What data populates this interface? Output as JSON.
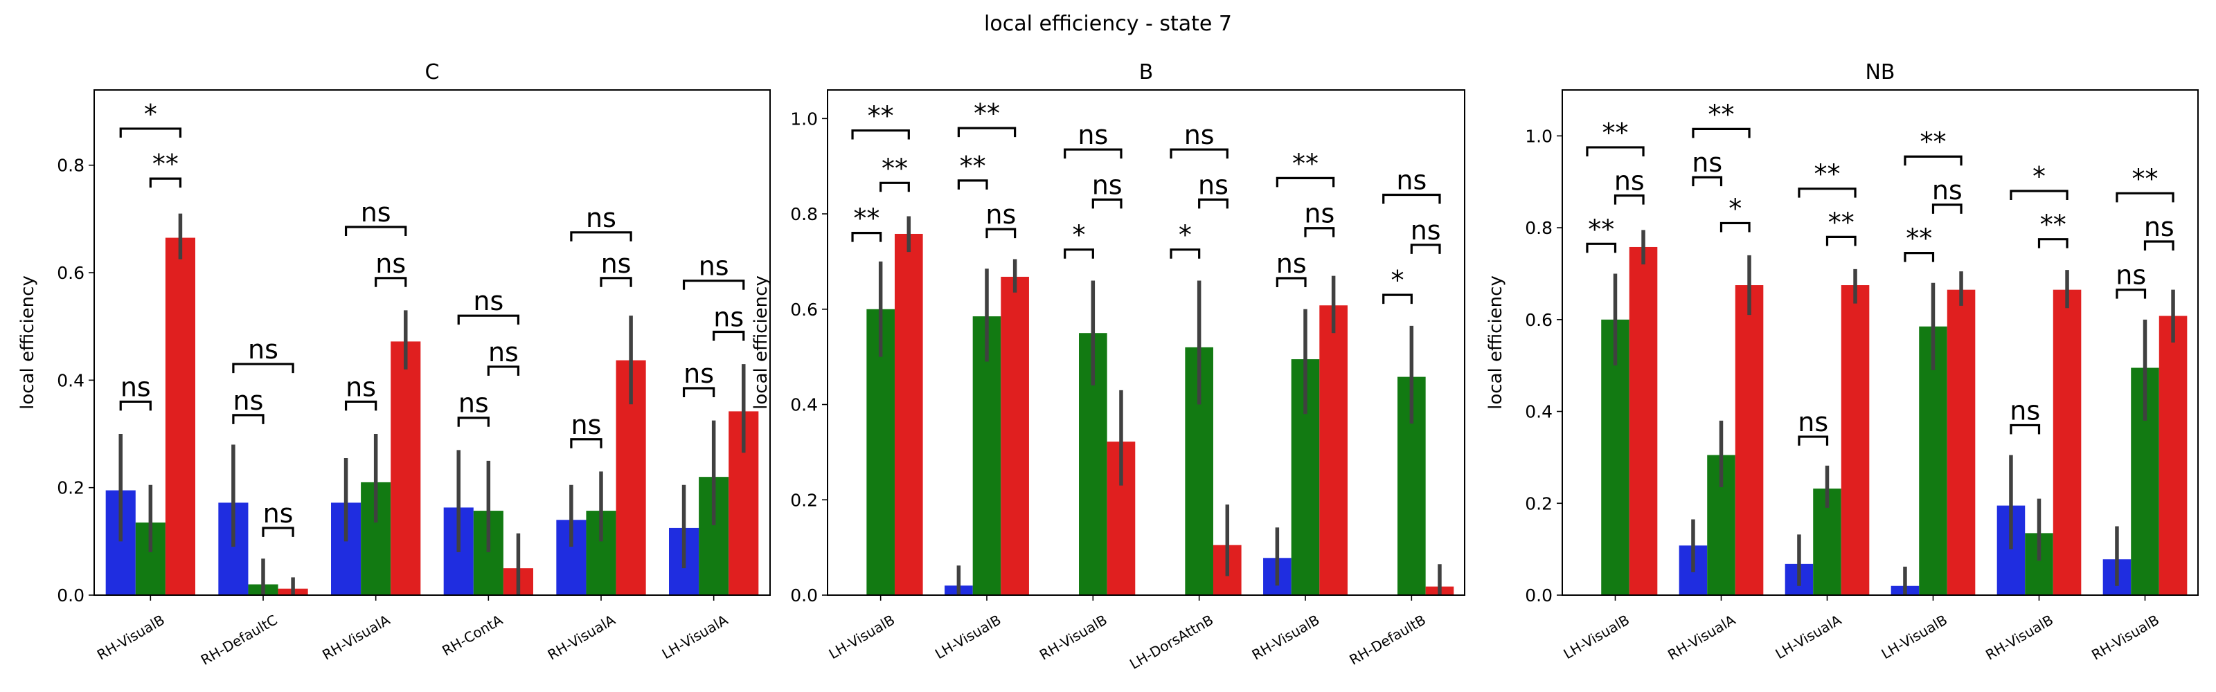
{
  "figure": {
    "suptitle": "local efficiency - state 7"
  },
  "colors": {
    "blue": "#1f2de0",
    "green": "#127a12",
    "red": "#e01f1f",
    "err": "#404040"
  },
  "chart_data": [
    {
      "type": "bar",
      "title": "C",
      "ylabel": "local efficiency",
      "xlabel": "",
      "ylim": [
        0,
        0.94
      ],
      "yticks": [
        0.0,
        0.2,
        0.4,
        0.6,
        0.8
      ],
      "ytick_labels": [
        "0.0",
        "0.2",
        "0.4",
        "0.6",
        "0.8"
      ],
      "categories": [
        "RH-VisualB",
        "RH-DefaultC",
        "RH-VisualA",
        "RH-ContA",
        "RH-VisualA",
        "LH-VisualA"
      ],
      "series": [
        {
          "color": "blue",
          "values": [
            0.195,
            0.172,
            0.172,
            0.163,
            0.14,
            0.125
          ],
          "ci_low": [
            0.1,
            0.09,
            0.1,
            0.08,
            0.09,
            0.05
          ],
          "ci_high": [
            0.3,
            0.28,
            0.255,
            0.27,
            0.205,
            0.205
          ]
        },
        {
          "color": "green",
          "values": [
            0.135,
            0.02,
            0.21,
            0.157,
            0.157,
            0.22
          ],
          "ci_low": [
            0.08,
            0.0,
            0.135,
            0.08,
            0.1,
            0.13
          ],
          "ci_high": [
            0.205,
            0.068,
            0.3,
            0.25,
            0.23,
            0.325
          ]
        },
        {
          "color": "red",
          "values": [
            0.665,
            0.012,
            0.472,
            0.05,
            0.437,
            0.342
          ],
          "ci_low": [
            0.625,
            0.0,
            0.42,
            0.0,
            0.355,
            0.265
          ],
          "ci_high": [
            0.71,
            0.033,
            0.53,
            0.115,
            0.52,
            0.43
          ]
        }
      ],
      "annotations": [
        {
          "cat": 0,
          "pairs": [
            [
              0,
              1,
              "ns",
              0.36
            ],
            [
              1,
              2,
              "**",
              0.775
            ],
            [
              0,
              2,
              "*",
              0.868
            ]
          ]
        },
        {
          "cat": 1,
          "pairs": [
            [
              0,
              1,
              "ns",
              0.335
            ],
            [
              1,
              2,
              "ns",
              0.125
            ],
            [
              0,
              2,
              "ns",
              0.43
            ]
          ]
        },
        {
          "cat": 2,
          "pairs": [
            [
              0,
              1,
              "ns",
              0.36
            ],
            [
              1,
              2,
              "ns",
              0.59
            ],
            [
              0,
              2,
              "ns",
              0.685
            ]
          ]
        },
        {
          "cat": 3,
          "pairs": [
            [
              0,
              1,
              "ns",
              0.33
            ],
            [
              1,
              2,
              "ns",
              0.425
            ],
            [
              0,
              2,
              "ns",
              0.52
            ]
          ]
        },
        {
          "cat": 4,
          "pairs": [
            [
              0,
              1,
              "ns",
              0.29
            ],
            [
              1,
              2,
              "ns",
              0.59
            ],
            [
              0,
              2,
              "ns",
              0.675
            ]
          ]
        },
        {
          "cat": 5,
          "pairs": [
            [
              0,
              1,
              "ns",
              0.385
            ],
            [
              1,
              2,
              "ns",
              0.49
            ],
            [
              0,
              2,
              "ns",
              0.585
            ]
          ]
        }
      ]
    },
    {
      "type": "bar",
      "title": "B",
      "ylabel": "local efficiency",
      "xlabel": "",
      "ylim": [
        0,
        1.06
      ],
      "yticks": [
        0.0,
        0.2,
        0.4,
        0.6,
        0.8,
        1.0
      ],
      "ytick_labels": [
        "0.0",
        "0.2",
        "0.4",
        "0.6",
        "0.8",
        "1.0"
      ],
      "categories": [
        "LH-VisualB",
        "LH-VisualB",
        "RH-VisualB",
        "LH-DorsAttnB",
        "RH-VisualB",
        "RH-DefaultB"
      ],
      "series": [
        {
          "color": "blue",
          "values": [
            0.0,
            0.02,
            0.0,
            0.0,
            0.078,
            0.0
          ],
          "ci_low": [
            0.0,
            0.0,
            0.0,
            0.0,
            0.02,
            0.0
          ],
          "ci_high": [
            0.0,
            0.062,
            0.0,
            0.0,
            0.142,
            0.0
          ]
        },
        {
          "color": "green",
          "values": [
            0.6,
            0.585,
            0.55,
            0.52,
            0.495,
            0.458
          ],
          "ci_low": [
            0.5,
            0.49,
            0.44,
            0.4,
            0.38,
            0.36
          ],
          "ci_high": [
            0.7,
            0.685,
            0.66,
            0.66,
            0.6,
            0.565
          ]
        },
        {
          "color": "red",
          "values": [
            0.758,
            0.668,
            0.322,
            0.105,
            0.608,
            0.018
          ],
          "ci_low": [
            0.72,
            0.635,
            0.23,
            0.04,
            0.55,
            0.0
          ],
          "ci_high": [
            0.795,
            0.705,
            0.43,
            0.19,
            0.67,
            0.065
          ]
        }
      ],
      "annotations": [
        {
          "cat": 0,
          "pairs": [
            [
              1,
              2,
              "**",
              0.865
            ],
            [
              0,
              1,
              "**",
              0.76
            ],
            [
              0,
              2,
              "**",
              0.975
            ]
          ]
        },
        {
          "cat": 1,
          "pairs": [
            [
              0,
              1,
              "**",
              0.87
            ],
            [
              1,
              2,
              "ns",
              0.768
            ],
            [
              0,
              2,
              "**",
              0.98
            ]
          ]
        },
        {
          "cat": 2,
          "pairs": [
            [
              0,
              1,
              "*",
              0.725
            ],
            [
              1,
              2,
              "ns",
              0.83
            ],
            [
              0,
              2,
              "ns",
              0.935
            ]
          ]
        },
        {
          "cat": 3,
          "pairs": [
            [
              0,
              1,
              "*",
              0.725
            ],
            [
              1,
              2,
              "ns",
              0.83
            ],
            [
              0,
              2,
              "ns",
              0.935
            ]
          ]
        },
        {
          "cat": 4,
          "pairs": [
            [
              0,
              1,
              "ns",
              0.665
            ],
            [
              1,
              2,
              "ns",
              0.77
            ],
            [
              0,
              2,
              "**",
              0.875
            ]
          ]
        },
        {
          "cat": 5,
          "pairs": [
            [
              0,
              1,
              "*",
              0.63
            ],
            [
              1,
              2,
              "ns",
              0.735
            ],
            [
              0,
              2,
              "ns",
              0.84
            ]
          ]
        }
      ]
    },
    {
      "type": "bar",
      "title": "NB",
      "ylabel": "local efficiency",
      "xlabel": "",
      "ylim": [
        0,
        1.1
      ],
      "yticks": [
        0.0,
        0.2,
        0.4,
        0.6,
        0.8,
        1.0
      ],
      "ytick_labels": [
        "0.0",
        "0.2",
        "0.4",
        "0.6",
        "0.8",
        "1.0"
      ],
      "categories": [
        "LH-VisualB",
        "RH-VisualA",
        "LH-VisualA",
        "LH-VisualB",
        "RH-VisualB",
        "RH-VisualB"
      ],
      "series": [
        {
          "color": "blue",
          "values": [
            0.0,
            0.108,
            0.068,
            0.02,
            0.195,
            0.078
          ],
          "ci_low": [
            0.0,
            0.05,
            0.02,
            0.0,
            0.1,
            0.02
          ],
          "ci_high": [
            0.0,
            0.165,
            0.132,
            0.062,
            0.305,
            0.15
          ]
        },
        {
          "color": "green",
          "values": [
            0.6,
            0.305,
            0.232,
            0.585,
            0.135,
            0.495
          ],
          "ci_low": [
            0.5,
            0.235,
            0.19,
            0.49,
            0.075,
            0.38
          ],
          "ci_high": [
            0.7,
            0.38,
            0.282,
            0.68,
            0.21,
            0.6
          ]
        },
        {
          "color": "red",
          "values": [
            0.758,
            0.675,
            0.675,
            0.665,
            0.665,
            0.608
          ],
          "ci_low": [
            0.72,
            0.61,
            0.635,
            0.63,
            0.625,
            0.55
          ],
          "ci_high": [
            0.795,
            0.74,
            0.71,
            0.705,
            0.708,
            0.665
          ]
        }
      ],
      "annotations": [
        {
          "cat": 0,
          "pairs": [
            [
              0,
              1,
              "**",
              0.765
            ],
            [
              1,
              2,
              "ns",
              0.87
            ],
            [
              0,
              2,
              "**",
              0.975
            ]
          ]
        },
        {
          "cat": 1,
          "pairs": [
            [
              0,
              1,
              "ns",
              0.91
            ],
            [
              1,
              2,
              "*",
              0.81
            ],
            [
              0,
              2,
              "**",
              1.015
            ]
          ]
        },
        {
          "cat": 2,
          "pairs": [
            [
              0,
              1,
              "ns",
              0.345
            ],
            [
              1,
              2,
              "**",
              0.78
            ],
            [
              0,
              2,
              "**",
              0.885
            ]
          ]
        },
        {
          "cat": 3,
          "pairs": [
            [
              0,
              1,
              "**",
              0.745
            ],
            [
              1,
              2,
              "ns",
              0.85
            ],
            [
              0,
              2,
              "**",
              0.955
            ]
          ]
        },
        {
          "cat": 4,
          "pairs": [
            [
              0,
              1,
              "ns",
              0.37
            ],
            [
              1,
              2,
              "**",
              0.775
            ],
            [
              0,
              2,
              "*",
              0.88
            ]
          ]
        },
        {
          "cat": 5,
          "pairs": [
            [
              0,
              1,
              "ns",
              0.665
            ],
            [
              1,
              2,
              "ns",
              0.77
            ],
            [
              0,
              2,
              "**",
              0.875
            ]
          ]
        }
      ]
    }
  ]
}
